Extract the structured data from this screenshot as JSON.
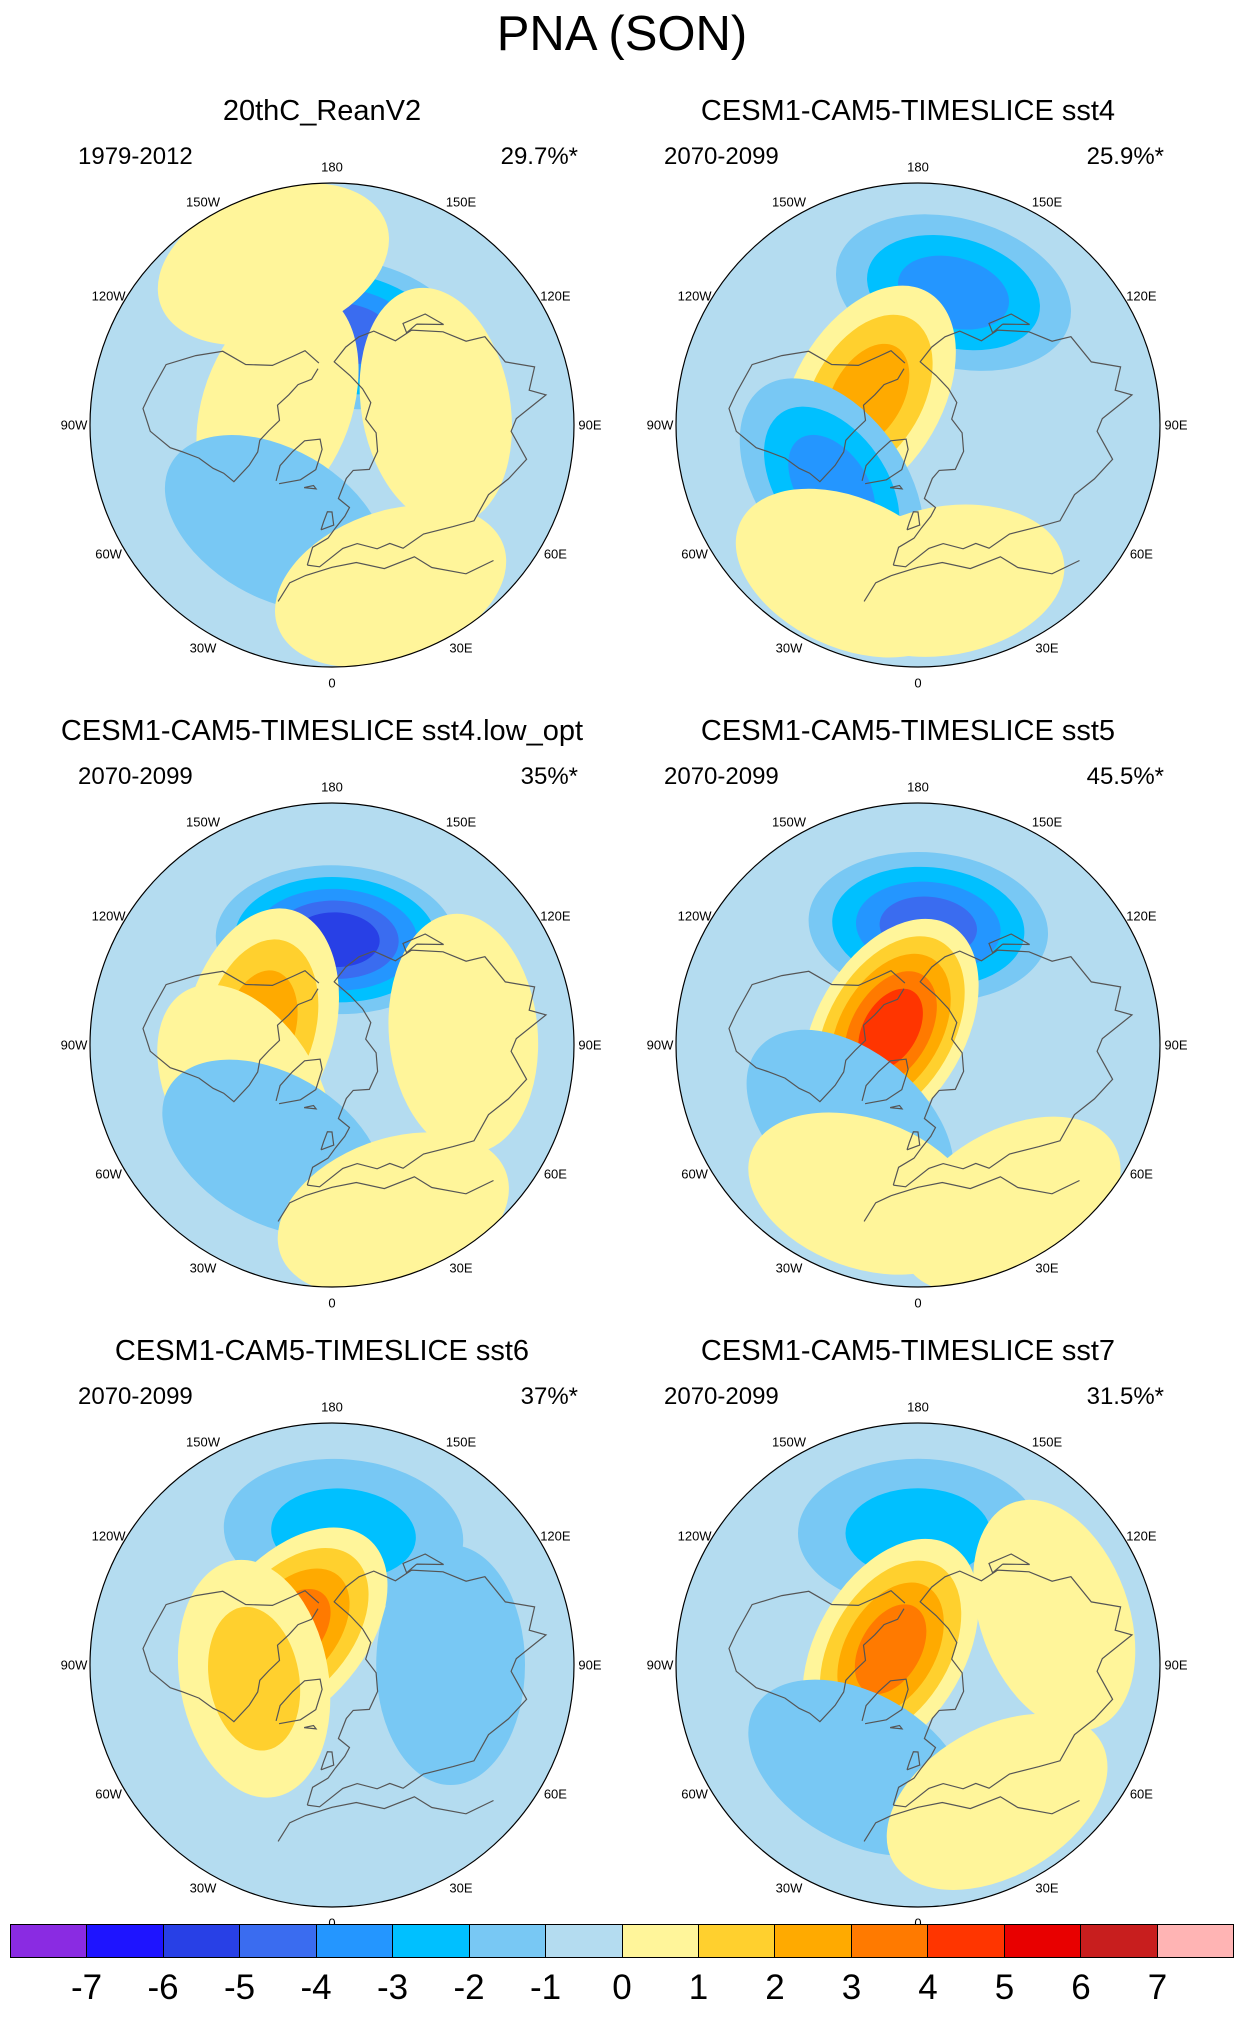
{
  "title": "PNA (SON)",
  "longitude_labels": [
    "180",
    "150E",
    "120E",
    "90E",
    "60E",
    "30E",
    "0",
    "30W",
    "60W",
    "90W",
    "120W",
    "150W"
  ],
  "panels": [
    {
      "title": "20thC_ReanV2",
      "period": "1979-2012",
      "variance": "29.7%*",
      "anomalies": [
        {
          "lon": 172,
          "lat": 55,
          "level": -4
        },
        {
          "lon": 250,
          "lat": 68,
          "level": 1
        },
        {
          "lon": 330,
          "lat": 47,
          "level": -1
        },
        {
          "lon": 20,
          "lat": 25,
          "level": 1
        },
        {
          "lon": 100,
          "lat": 50,
          "level": 1
        },
        {
          "lon": 200,
          "lat": 25,
          "level": 1
        }
      ]
    },
    {
      "title": "CESM1-CAM5-TIMESLICE sst4",
      "period": "2070-2099",
      "variance": "25.9%*",
      "anomalies": [
        {
          "lon": 165,
          "lat": 38,
          "level": -3
        },
        {
          "lon": 240,
          "lat": 68,
          "level": 3
        },
        {
          "lon": 305,
          "lat": 50,
          "level": -3
        },
        {
          "lon": 335,
          "lat": 28,
          "level": 1
        },
        {
          "lon": 10,
          "lat": 30,
          "level": 1
        }
      ]
    },
    {
      "title": "CESM1-CAM5-TIMESLICE sst4.low_opt",
      "period": "2070-2099",
      "variance": "35%*",
      "anomalies": [
        {
          "lon": 178,
          "lat": 50,
          "level": -5
        },
        {
          "lon": 255,
          "lat": 62,
          "level": 3
        },
        {
          "lon": 300,
          "lat": 52,
          "level": 1
        },
        {
          "lon": 330,
          "lat": 45,
          "level": -1
        },
        {
          "lon": 20,
          "lat": 22,
          "level": 1
        },
        {
          "lon": 95,
          "lat": 40,
          "level": 1
        }
      ]
    },
    {
      "title": "CESM1-CAM5-TIMESLICE sst5",
      "period": "2070-2099",
      "variance": "45.5%*",
      "anomalies": [
        {
          "lon": 175,
          "lat": 45,
          "level": -4
        },
        {
          "lon": 240,
          "lat": 78,
          "level": 5
        },
        {
          "lon": 320,
          "lat": 50,
          "level": -1
        },
        {
          "lon": 340,
          "lat": 30,
          "level": 1
        },
        {
          "lon": 30,
          "lat": 20,
          "level": 1
        }
      ]
    },
    {
      "title": "CESM1-CAM5-TIMESLICE sst6",
      "period": "2070-2099",
      "variance": "37%*",
      "anomalies": [
        {
          "lon": 175,
          "lat": 40,
          "level": -2
        },
        {
          "lon": 230,
          "lat": 70,
          "level": 4
        },
        {
          "lon": 280,
          "lat": 60,
          "level": 2
        },
        {
          "lon": 90,
          "lat": 45,
          "level": -1
        }
      ]
    },
    {
      "title": "CESM1-CAM5-TIMESLICE sst7",
      "period": "2070-2099",
      "variance": "31.5%*",
      "anomalies": [
        {
          "lon": 180,
          "lat": 40,
          "level": -2
        },
        {
          "lon": 240,
          "lat": 78,
          "level": 4
        },
        {
          "lon": 330,
          "lat": 45,
          "level": -1
        },
        {
          "lon": 30,
          "lat": 30,
          "level": 1
        },
        {
          "lon": 110,
          "lat": 35,
          "level": 1
        }
      ]
    }
  ],
  "colorbar": {
    "labels": [
      "-7",
      "-6",
      "-5",
      "-4",
      "-3",
      "-2",
      "-1",
      "0",
      "1",
      "2",
      "3",
      "4",
      "5",
      "6",
      "7"
    ],
    "colors": [
      "#8a2be2",
      "#1e14ff",
      "#2840e6",
      "#3a6cf0",
      "#2496ff",
      "#00c0ff",
      "#78c8f4",
      "#b4dcf0",
      "#fff59a",
      "#ffd02e",
      "#ffaa00",
      "#ff7a00",
      "#ff3500",
      "#e80000",
      "#c81e1e",
      "#ffb4b4"
    ]
  }
}
